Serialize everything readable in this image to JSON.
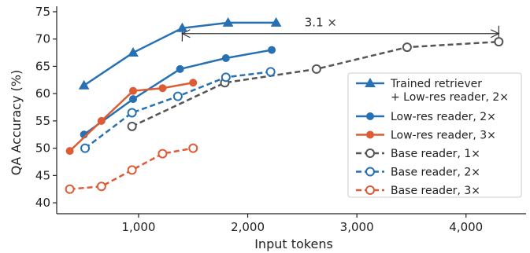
{
  "chart_data": {
    "type": "line",
    "xlabel": "Input tokens",
    "ylabel": "QA Accuracy (%)",
    "xlim": [
      250,
      4550
    ],
    "ylim": [
      38,
      76
    ],
    "x_ticks": [
      1000,
      2000,
      3000,
      4000
    ],
    "x_tick_labels": [
      "1,000",
      "2,000",
      "3,000",
      "4,000"
    ],
    "y_ticks": [
      40,
      45,
      50,
      55,
      60,
      65,
      70,
      75
    ],
    "y_tick_labels": [
      "40",
      "45",
      "50",
      "55",
      "60",
      "65",
      "70",
      "75"
    ],
    "grid": false,
    "legend_position": "lower-right",
    "colors": {
      "blue": "#2771b3",
      "orange": "#dd5b35",
      "gray": "#555555"
    },
    "series": [
      {
        "name": "Trained retriever\n+ Low-res reader, 2×",
        "color": "#2771b3",
        "dash": false,
        "marker": "triangle",
        "filled": true,
        "x": [
          500,
          950,
          1400,
          1820,
          2260
        ],
        "y": [
          61.5,
          67.5,
          72,
          73,
          73
        ]
      },
      {
        "name": "Low-res reader, 2×",
        "color": "#2771b3",
        "dash": false,
        "marker": "circle",
        "filled": true,
        "x": [
          500,
          950,
          1380,
          1800,
          2220
        ],
        "y": [
          52.5,
          59,
          64.5,
          66.5,
          68
        ]
      },
      {
        "name": "Low-res reader, 3×",
        "color": "#dd5b35",
        "dash": false,
        "marker": "circle",
        "filled": true,
        "x": [
          370,
          660,
          950,
          1220,
          1500
        ],
        "y": [
          49.5,
          55,
          60.5,
          61,
          62
        ]
      },
      {
        "name": "Base reader, 1×",
        "color": "#555555",
        "dash": true,
        "marker": "circle",
        "filled": false,
        "x": [
          940,
          1790,
          2630,
          3460,
          4300
        ],
        "y": [
          54,
          62,
          64.5,
          68.5,
          69.5
        ]
      },
      {
        "name": "Base reader, 2×",
        "color": "#2771b3",
        "dash": true,
        "marker": "circle",
        "filled": false,
        "x": [
          510,
          940,
          1360,
          1800,
          2210
        ],
        "y": [
          50,
          56.5,
          59.5,
          63,
          64
        ]
      },
      {
        "name": "Base reader, 3×",
        "color": "#dd5b35",
        "dash": true,
        "marker": "circle",
        "filled": false,
        "x": [
          370,
          660,
          940,
          1220,
          1500
        ],
        "y": [
          42.5,
          43,
          46,
          49,
          50
        ]
      }
    ],
    "annotations": [
      {
        "text": "3.1 ×",
        "type": "double-arrow",
        "x_from": 1400,
        "x_to": 4300,
        "y": 71
      }
    ]
  }
}
